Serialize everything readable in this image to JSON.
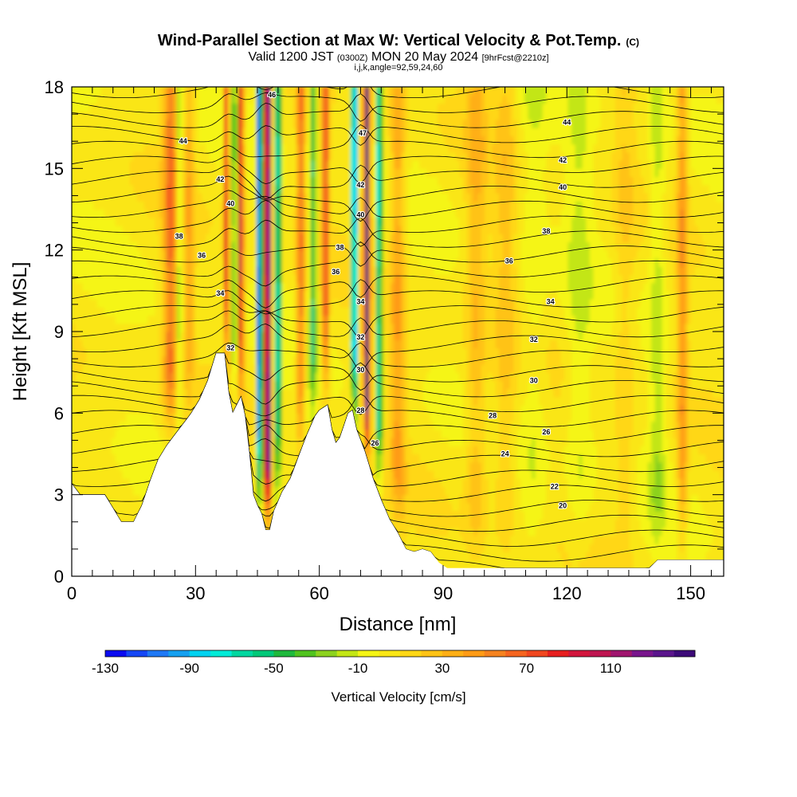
{
  "chart_data": {
    "type": "heatmap",
    "title": "Wind-Parallel Section at Max W: Vertical Velocity & Pot.Temp.",
    "title_mark": "(C)",
    "subtitle_parts": [
      "Valid 1200 JST ",
      "(0300Z)",
      " MON 20 May 2024 ",
      "[9hrFcst@2210z]"
    ],
    "subtitle2": "i,j,k,angle=92,59,24,60",
    "xlabel": "Distance [nm]",
    "ylabel": "Height [Kft MSL]",
    "xlim": [
      0,
      158
    ],
    "ylim": [
      0,
      18
    ],
    "x_ticks": [
      0,
      30,
      60,
      90,
      120,
      150
    ],
    "y_ticks": [
      0,
      3,
      6,
      9,
      12,
      15,
      18
    ],
    "colorbar": {
      "label": "Vertical Velocity [cm/s]",
      "range": [
        -130,
        150
      ],
      "step": 10,
      "tick_values": [
        -130,
        -90,
        -50,
        -10,
        30,
        70,
        110
      ],
      "colors": [
        "#0a0af0",
        "#1446f5",
        "#1e78f5",
        "#14a0f0",
        "#00d2f0",
        "#00ebd7",
        "#00d7a0",
        "#00c878",
        "#1eb93c",
        "#50c31e",
        "#8cd21e",
        "#c3e614",
        "#f5f514",
        "#fae614",
        "#ffd714",
        "#ffc314",
        "#ffaf14",
        "#ff9b14",
        "#f5821e",
        "#f5641e",
        "#f0461e",
        "#e61e1e",
        "#d2143c",
        "#be1450",
        "#a0146e",
        "#78148c",
        "#5a148c",
        "#3c0a78"
      ]
    },
    "theta_labels": [
      {
        "x": 27,
        "z": 16.0,
        "text": "44"
      },
      {
        "x": 36,
        "z": 14.6,
        "text": "42"
      },
      {
        "x": 38.5,
        "z": 13.7,
        "text": "40"
      },
      {
        "x": 26,
        "z": 12.5,
        "text": "38"
      },
      {
        "x": 31.5,
        "z": 11.8,
        "text": "36"
      },
      {
        "x": 36,
        "z": 10.4,
        "text": "34"
      },
      {
        "x": 38.5,
        "z": 8.4,
        "text": "32"
      },
      {
        "x": 48.5,
        "z": 17.7,
        "text": "46"
      },
      {
        "x": 65,
        "z": 12.1,
        "text": "38"
      },
      {
        "x": 64,
        "z": 11.2,
        "text": "36"
      },
      {
        "x": 70.5,
        "z": 16.3,
        "text": "47"
      },
      {
        "x": 70,
        "z": 14.4,
        "text": "42"
      },
      {
        "x": 70,
        "z": 13.3,
        "text": "40"
      },
      {
        "x": 70,
        "z": 10.1,
        "text": "34"
      },
      {
        "x": 70,
        "z": 8.8,
        "text": "32"
      },
      {
        "x": 70,
        "z": 7.6,
        "text": "30"
      },
      {
        "x": 70,
        "z": 6.1,
        "text": "28"
      },
      {
        "x": 73.5,
        "z": 4.9,
        "text": "26"
      },
      {
        "x": 120,
        "z": 16.7,
        "text": "44"
      },
      {
        "x": 119,
        "z": 15.3,
        "text": "42"
      },
      {
        "x": 119,
        "z": 14.3,
        "text": "40"
      },
      {
        "x": 115,
        "z": 12.7,
        "text": "38"
      },
      {
        "x": 106,
        "z": 11.6,
        "text": "36"
      },
      {
        "x": 116,
        "z": 10.1,
        "text": "34"
      },
      {
        "x": 112,
        "z": 8.7,
        "text": "32"
      },
      {
        "x": 112,
        "z": 7.2,
        "text": "30"
      },
      {
        "x": 102,
        "z": 5.9,
        "text": "28"
      },
      {
        "x": 115,
        "z": 5.3,
        "text": "26"
      },
      {
        "x": 105,
        "z": 4.5,
        "text": "24"
      },
      {
        "x": 117,
        "z": 3.3,
        "text": "22"
      },
      {
        "x": 119,
        "z": 2.6,
        "text": "20"
      }
    ]
  }
}
